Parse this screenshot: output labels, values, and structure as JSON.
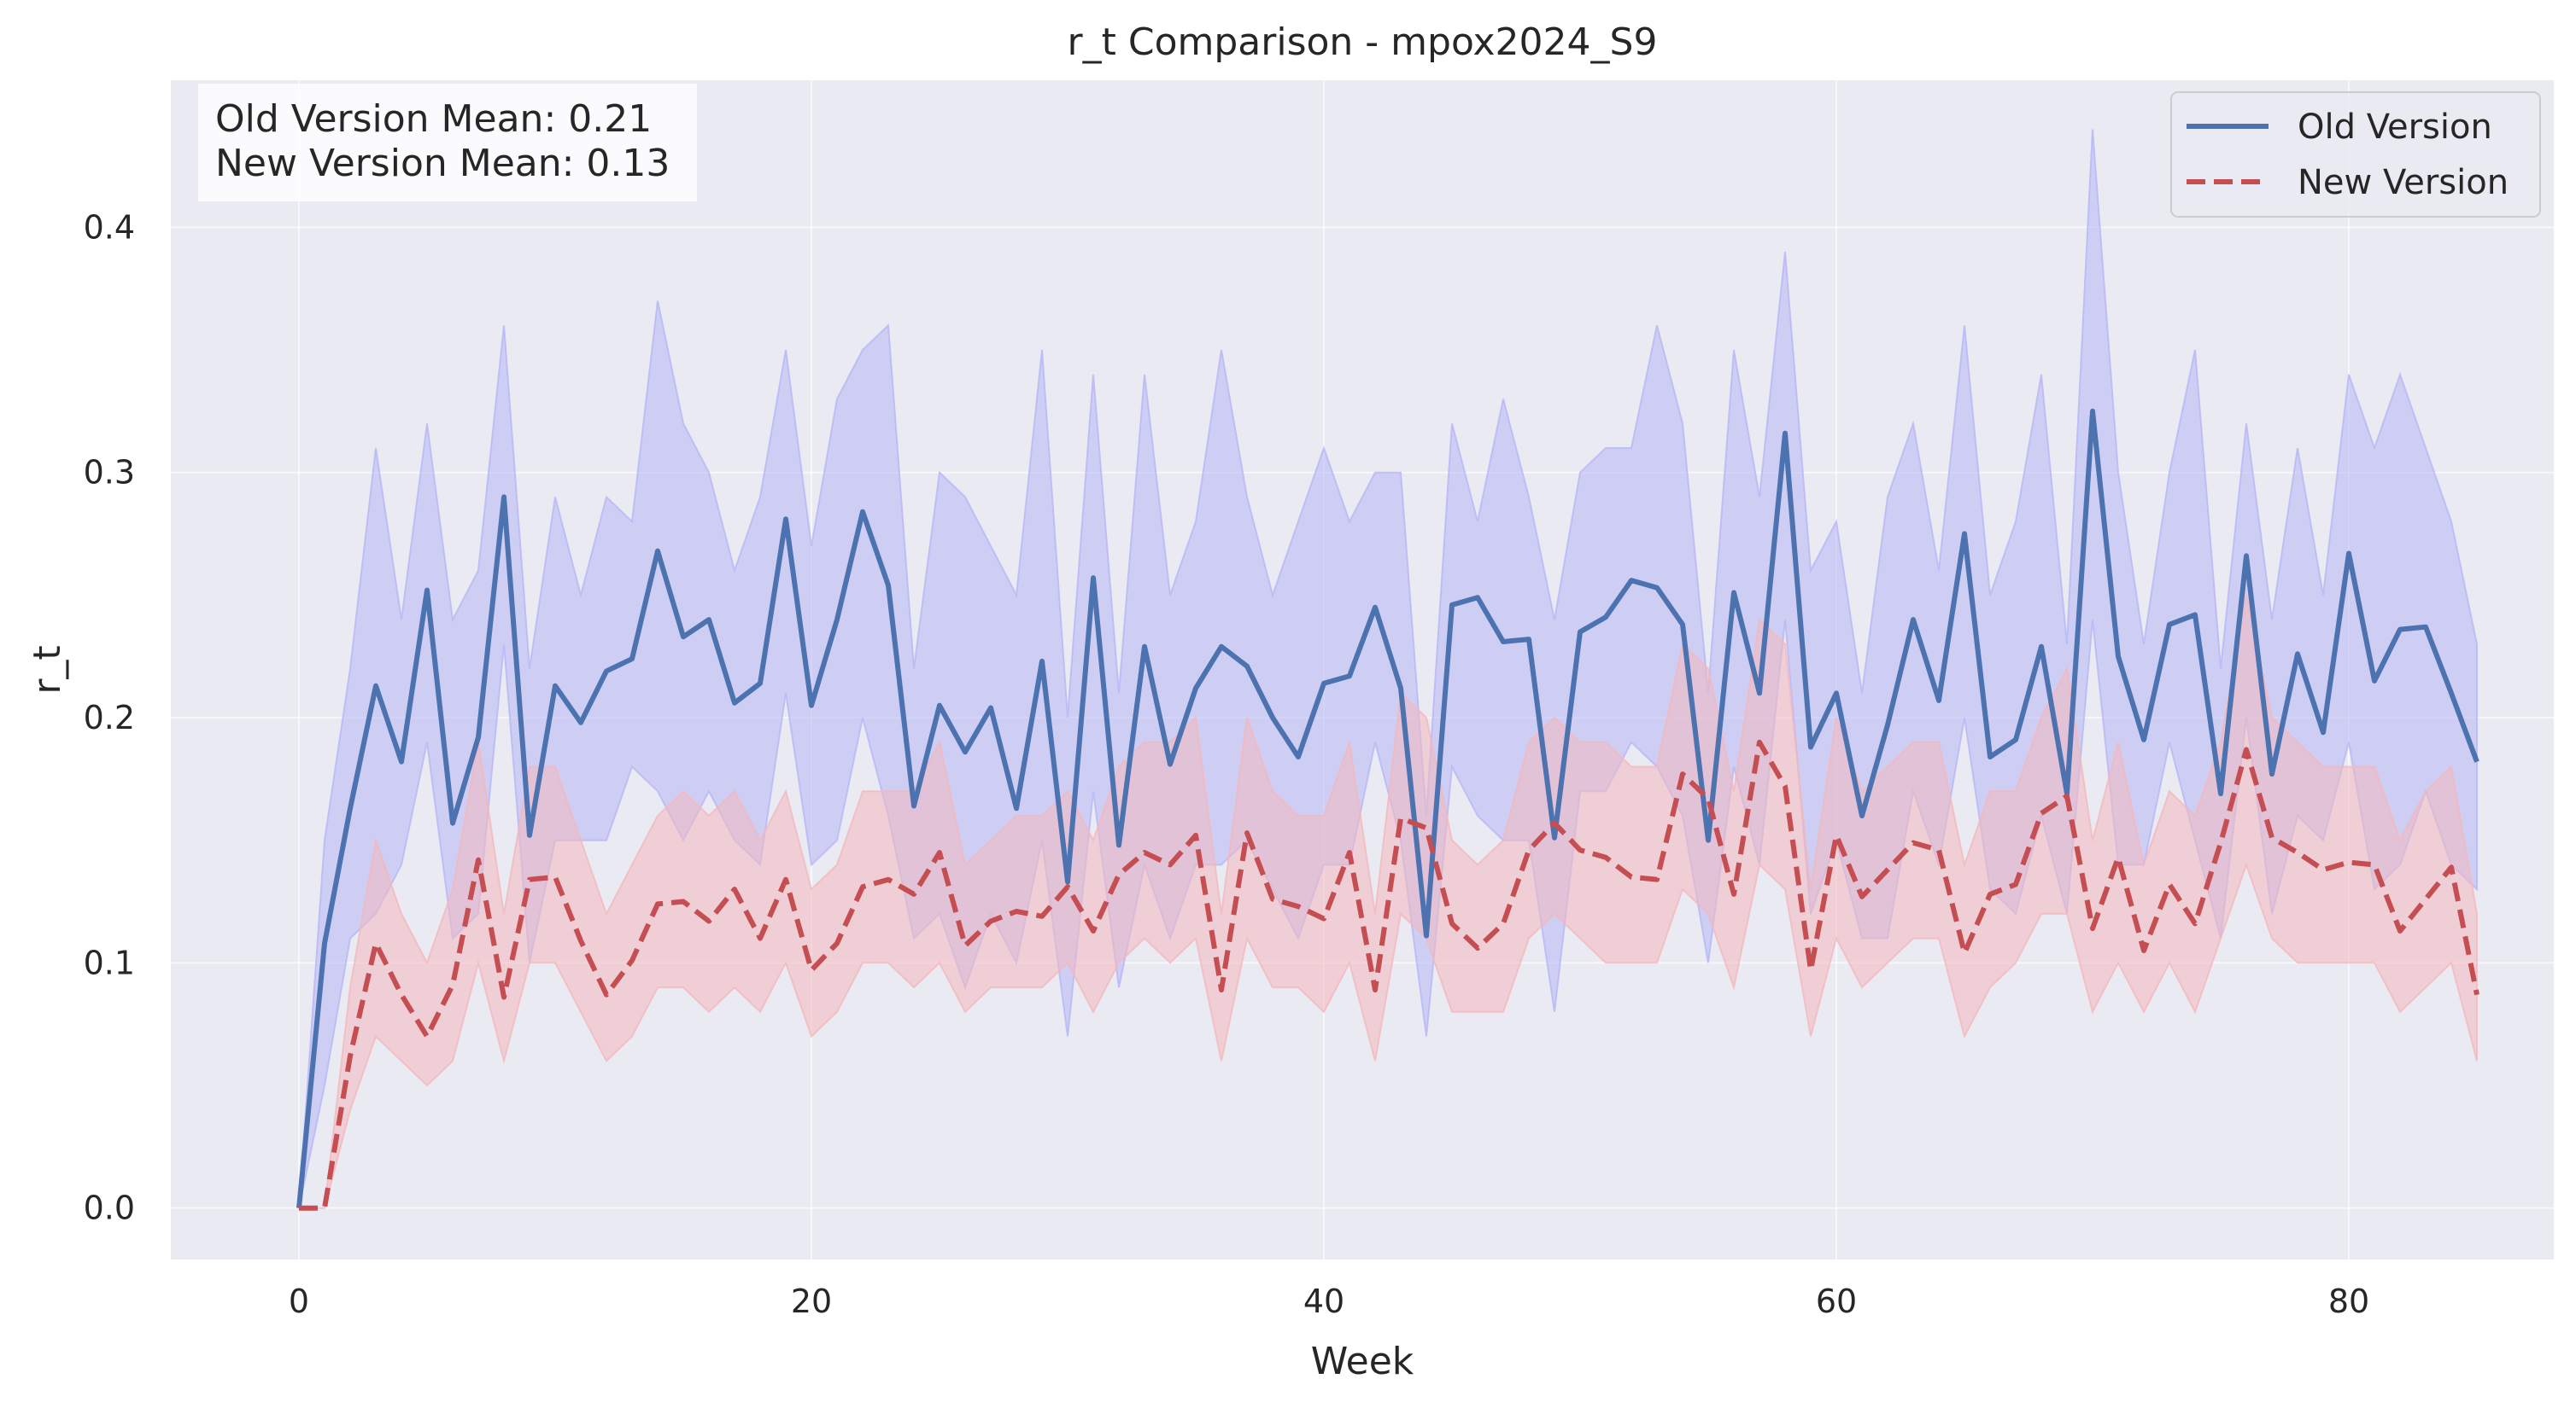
{
  "chart_data": {
    "type": "line",
    "title": "r_t Comparison - mpox2024_S9",
    "xlabel": "Week",
    "ylabel": "r_t",
    "xlim": [
      -5,
      88
    ],
    "ylim": [
      -0.021,
      0.46
    ],
    "xticks": [
      0,
      20,
      40,
      60,
      80
    ],
    "yticks": [
      0.0,
      0.1,
      0.2,
      0.3,
      0.4
    ],
    "grid": true,
    "legend_position": "top-right",
    "stats_box": {
      "position": "top-left",
      "lines": [
        "Old Version Mean: 0.21",
        "New Version Mean: 0.13"
      ]
    },
    "x": [
      0,
      1,
      2,
      3,
      4,
      5,
      6,
      7,
      8,
      9,
      10,
      11,
      12,
      13,
      14,
      15,
      16,
      17,
      18,
      19,
      20,
      21,
      22,
      23,
      24,
      25,
      26,
      27,
      28,
      29,
      30,
      31,
      32,
      33,
      34,
      35,
      36,
      37,
      38,
      39,
      40,
      41,
      42,
      43,
      44,
      45,
      46,
      47,
      48,
      49,
      50,
      51,
      52,
      53,
      54,
      55,
      56,
      57,
      58,
      59,
      60,
      61,
      62,
      63,
      64,
      65,
      66,
      67,
      68,
      69,
      70,
      71,
      72,
      73,
      74,
      75,
      76,
      77,
      78,
      79,
      80,
      81,
      82,
      83,
      84,
      85
    ],
    "series": [
      {
        "name": "Old Version",
        "color": "#4c72b0",
        "style": "solid",
        "band_color": "#b6b6f6",
        "values": [
          0.0,
          0.108,
          0.163,
          0.213,
          0.182,
          0.252,
          0.157,
          0.192,
          0.29,
          0.152,
          0.213,
          0.198,
          0.219,
          0.224,
          0.268,
          0.233,
          0.24,
          0.206,
          0.214,
          0.281,
          0.205,
          0.24,
          0.284,
          0.254,
          0.164,
          0.205,
          0.186,
          0.204,
          0.163,
          0.223,
          0.133,
          0.257,
          0.148,
          0.229,
          0.181,
          0.212,
          0.229,
          0.221,
          0.2,
          0.184,
          0.214,
          0.217,
          0.245,
          0.212,
          0.111,
          0.246,
          0.249,
          0.231,
          0.232,
          0.151,
          0.235,
          0.241,
          0.256,
          0.253,
          0.238,
          0.15,
          0.251,
          0.21,
          0.316,
          0.188,
          0.21,
          0.16,
          0.197,
          0.24,
          0.207,
          0.275,
          0.184,
          0.191,
          0.229,
          0.169,
          0.325,
          0.225,
          0.191,
          0.238,
          0.242,
          0.169,
          0.266,
          0.177,
          0.226,
          0.194,
          0.267,
          0.215,
          0.236,
          0.237,
          0.21,
          0.182
        ],
        "lower": [
          0.0,
          0.05,
          0.11,
          0.12,
          0.14,
          0.19,
          0.11,
          0.12,
          0.23,
          0.1,
          0.15,
          0.15,
          0.15,
          0.18,
          0.17,
          0.15,
          0.17,
          0.15,
          0.14,
          0.21,
          0.14,
          0.15,
          0.2,
          0.16,
          0.11,
          0.12,
          0.09,
          0.12,
          0.1,
          0.15,
          0.07,
          0.17,
          0.09,
          0.14,
          0.11,
          0.14,
          0.14,
          0.15,
          0.13,
          0.11,
          0.14,
          0.14,
          0.19,
          0.15,
          0.07,
          0.18,
          0.16,
          0.15,
          0.15,
          0.08,
          0.17,
          0.17,
          0.19,
          0.18,
          0.16,
          0.1,
          0.18,
          0.14,
          0.24,
          0.12,
          0.15,
          0.11,
          0.11,
          0.17,
          0.14,
          0.2,
          0.13,
          0.12,
          0.16,
          0.12,
          0.24,
          0.14,
          0.14,
          0.19,
          0.15,
          0.11,
          0.2,
          0.12,
          0.16,
          0.15,
          0.19,
          0.13,
          0.14,
          0.17,
          0.14,
          0.13
        ],
        "upper": [
          0.0,
          0.15,
          0.22,
          0.31,
          0.24,
          0.32,
          0.24,
          0.26,
          0.36,
          0.22,
          0.29,
          0.25,
          0.29,
          0.28,
          0.37,
          0.32,
          0.3,
          0.26,
          0.29,
          0.35,
          0.27,
          0.33,
          0.35,
          0.36,
          0.22,
          0.3,
          0.29,
          0.27,
          0.25,
          0.35,
          0.2,
          0.34,
          0.21,
          0.34,
          0.25,
          0.28,
          0.35,
          0.29,
          0.25,
          0.28,
          0.31,
          0.28,
          0.3,
          0.3,
          0.16,
          0.32,
          0.28,
          0.33,
          0.29,
          0.24,
          0.3,
          0.31,
          0.31,
          0.36,
          0.32,
          0.21,
          0.35,
          0.29,
          0.39,
          0.26,
          0.28,
          0.21,
          0.29,
          0.32,
          0.26,
          0.36,
          0.25,
          0.28,
          0.34,
          0.23,
          0.44,
          0.3,
          0.23,
          0.3,
          0.35,
          0.22,
          0.32,
          0.24,
          0.31,
          0.25,
          0.34,
          0.31,
          0.34,
          0.31,
          0.28,
          0.23
        ]
      },
      {
        "name": "New Version",
        "color": "#c44e52",
        "style": "dashed",
        "band_color": "#f2b8bd",
        "values": [
          0.0,
          0.0,
          0.062,
          0.108,
          0.087,
          0.07,
          0.091,
          0.142,
          0.086,
          0.134,
          0.135,
          0.109,
          0.087,
          0.101,
          0.124,
          0.125,
          0.117,
          0.13,
          0.11,
          0.134,
          0.097,
          0.108,
          0.131,
          0.134,
          0.128,
          0.145,
          0.107,
          0.117,
          0.121,
          0.119,
          0.131,
          0.113,
          0.136,
          0.145,
          0.14,
          0.152,
          0.089,
          0.153,
          0.126,
          0.123,
          0.118,
          0.145,
          0.089,
          0.159,
          0.155,
          0.116,
          0.106,
          0.116,
          0.146,
          0.157,
          0.146,
          0.143,
          0.135,
          0.134,
          0.177,
          0.167,
          0.128,
          0.19,
          0.172,
          0.097,
          0.152,
          0.127,
          0.138,
          0.149,
          0.146,
          0.104,
          0.128,
          0.132,
          0.161,
          0.168,
          0.114,
          0.143,
          0.105,
          0.132,
          0.116,
          0.149,
          0.187,
          0.151,
          0.145,
          0.138,
          0.141,
          0.14,
          0.113,
          0.126,
          0.139,
          0.087
        ],
        "lower": [
          0.0,
          0.0,
          0.04,
          0.07,
          0.06,
          0.05,
          0.06,
          0.1,
          0.06,
          0.1,
          0.1,
          0.08,
          0.06,
          0.07,
          0.09,
          0.09,
          0.08,
          0.09,
          0.08,
          0.1,
          0.07,
          0.08,
          0.1,
          0.1,
          0.09,
          0.1,
          0.08,
          0.09,
          0.09,
          0.09,
          0.1,
          0.08,
          0.1,
          0.11,
          0.1,
          0.11,
          0.06,
          0.11,
          0.09,
          0.09,
          0.08,
          0.1,
          0.06,
          0.12,
          0.11,
          0.08,
          0.08,
          0.08,
          0.11,
          0.12,
          0.11,
          0.1,
          0.1,
          0.1,
          0.13,
          0.12,
          0.09,
          0.14,
          0.13,
          0.07,
          0.11,
          0.09,
          0.1,
          0.11,
          0.11,
          0.07,
          0.09,
          0.1,
          0.12,
          0.12,
          0.08,
          0.1,
          0.08,
          0.1,
          0.08,
          0.11,
          0.14,
          0.11,
          0.1,
          0.1,
          0.1,
          0.1,
          0.08,
          0.09,
          0.1,
          0.06
        ],
        "upper": [
          0.0,
          0.0,
          0.09,
          0.15,
          0.12,
          0.1,
          0.13,
          0.19,
          0.12,
          0.18,
          0.18,
          0.15,
          0.12,
          0.14,
          0.16,
          0.17,
          0.16,
          0.17,
          0.15,
          0.17,
          0.13,
          0.14,
          0.17,
          0.17,
          0.17,
          0.19,
          0.14,
          0.15,
          0.16,
          0.16,
          0.17,
          0.15,
          0.18,
          0.19,
          0.19,
          0.2,
          0.12,
          0.2,
          0.17,
          0.16,
          0.16,
          0.19,
          0.12,
          0.21,
          0.2,
          0.15,
          0.14,
          0.15,
          0.19,
          0.2,
          0.19,
          0.19,
          0.18,
          0.18,
          0.23,
          0.22,
          0.17,
          0.24,
          0.23,
          0.13,
          0.2,
          0.17,
          0.18,
          0.19,
          0.19,
          0.14,
          0.17,
          0.17,
          0.2,
          0.22,
          0.15,
          0.19,
          0.14,
          0.17,
          0.16,
          0.19,
          0.25,
          0.2,
          0.19,
          0.18,
          0.18,
          0.18,
          0.15,
          0.17,
          0.18,
          0.12
        ]
      }
    ]
  },
  "colors": {
    "plot_background": "#eaeaf2",
    "grid": "#ffffff",
    "page_background": "#ffffff"
  }
}
